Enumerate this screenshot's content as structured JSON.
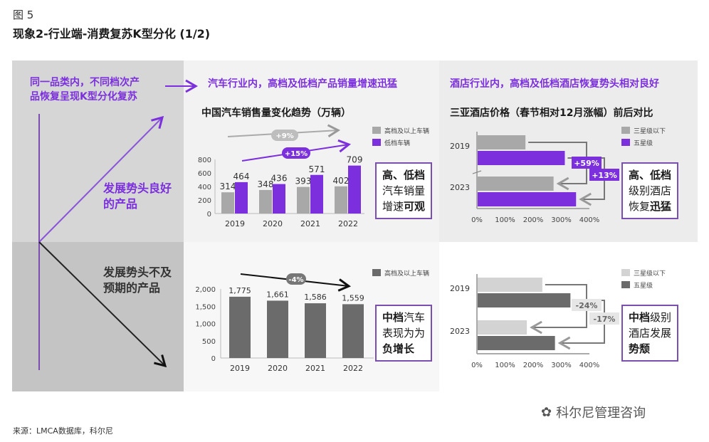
{
  "figure_label": "图 5",
  "title": "现象2-行业端-消费复苏K型分化 (1/2)",
  "left": {
    "header": [
      "同一品类内，不同档次产",
      "品恢复呈现K型分化复苏"
    ],
    "up_label": [
      "发展势头良好",
      "的产品"
    ],
    "down_label": [
      "发展势头不及",
      "预期的产品"
    ]
  },
  "headers": {
    "auto": "汽车行业内，高档及低档产品销量增速迅猛",
    "hotel": "酒店行业内，高档及低档酒店恢复势头相对良好"
  },
  "boxes": {
    "auto_top": [
      [
        {
          "t": "高、低档",
          "b": true
        }
      ],
      [
        {
          "t": "汽车销量",
          "b": false
        }
      ],
      [
        {
          "t": "增速",
          "b": false
        },
        {
          "t": "可观",
          "b": true
        }
      ]
    ],
    "hotel_top": [
      [
        {
          "t": "高、低档",
          "b": true
        }
      ],
      [
        {
          "t": "级别酒店",
          "b": false
        }
      ],
      [
        {
          "t": "恢复",
          "b": false
        },
        {
          "t": "迅猛",
          "b": true
        }
      ]
    ],
    "auto_bottom": [
      [
        {
          "t": "中档",
          "b": true
        },
        {
          "t": "汽车",
          "b": false
        }
      ],
      [
        {
          "t": "表现为为",
          "b": false
        }
      ],
      [
        {
          "t": "负增长",
          "b": true
        }
      ]
    ],
    "hotel_bottom": [
      [
        {
          "t": "中档",
          "b": true
        },
        {
          "t": "级别",
          "b": false
        }
      ],
      [
        {
          "t": "酒店发展",
          "b": false
        }
      ],
      [
        {
          "t": "势颓",
          "b": true
        }
      ]
    ]
  },
  "colors": {
    "purple": "#7B2FDD",
    "gray": "#a8a8a8",
    "dark": "#6b6b6b",
    "light": "#d3d3d3"
  },
  "chart_data": [
    {
      "type": "bar",
      "title": "中国汽车销售量变化趋势（万辆）",
      "categories": [
        "2019",
        "2020",
        "2021",
        "2022"
      ],
      "series": [
        {
          "name": "高档及以上车辆",
          "values": [
            314,
            348,
            393,
            402
          ]
        },
        {
          "name": "低档车辆",
          "values": [
            464,
            436,
            571,
            709
          ]
        }
      ],
      "yticks": [
        "0",
        "200",
        "400",
        "600",
        "800"
      ],
      "ylim": [
        0,
        800
      ],
      "annotations": [
        "+9%",
        "+15%"
      ],
      "legend": "top-right"
    },
    {
      "type": "bar",
      "title": "",
      "categories": [
        "2019",
        "2020",
        "2021",
        "2022"
      ],
      "series": [
        {
          "name": "高档及以上车辆",
          "values": [
            1775,
            1661,
            1586,
            1559
          ]
        }
      ],
      "value_labels": [
        "1,775",
        "1,661",
        "1,586",
        "1,559"
      ],
      "yticks": [
        "0",
        "500",
        "1,000",
        "1,500",
        "2,000"
      ],
      "ylim": [
        0,
        2000
      ],
      "annotations": [
        "-4%"
      ],
      "legend": "top-right"
    },
    {
      "type": "bar",
      "orientation": "horizontal",
      "title": "三亚酒店价格（春节相对12月涨幅）前后对比",
      "categories": [
        "2019",
        "2023"
      ],
      "series": [
        {
          "name": "三星级以下",
          "values": [
            170,
            270
          ]
        },
        {
          "name": "五星级",
          "values": [
            310,
            350
          ]
        }
      ],
      "xticks": [
        "0%",
        "100%",
        "200%",
        "300%",
        "400%"
      ],
      "xlim": [
        0,
        400
      ],
      "annotations": [
        "+59%",
        "+13%"
      ],
      "legend": "top-right"
    },
    {
      "type": "bar",
      "orientation": "horizontal",
      "title": "",
      "categories": [
        "2019",
        "2023"
      ],
      "series": [
        {
          "name": "三星级以下",
          "values": [
            230,
            175
          ]
        },
        {
          "name": "五星级",
          "values": [
            330,
            275
          ]
        }
      ],
      "xticks": [
        "0%",
        "100%",
        "200%",
        "300%",
        "400%"
      ],
      "xlim": [
        0,
        400
      ],
      "annotations": [
        "-24%",
        "-17%"
      ],
      "legend": "top-right"
    }
  ],
  "source": "来源：LMCA数据库，科尔尼",
  "watermark": "科尔尼管理咨询"
}
